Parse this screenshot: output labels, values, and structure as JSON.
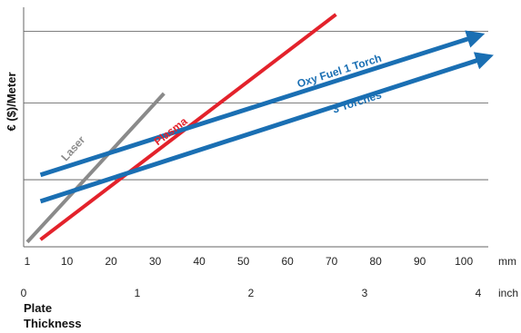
{
  "chart_data": {
    "type": "line",
    "title": "",
    "ylabel": "€ ($)/Meter",
    "xlabel": "Plate Thickness",
    "xlabel_line1": "Plate",
    "xlabel_line2": "Thickness",
    "x_unit_mm": "mm",
    "x_unit_inch": "inch",
    "x_ticks_mm": [
      "1",
      "10",
      "20",
      "30",
      "40",
      "50",
      "60",
      "70",
      "80",
      "90",
      "100"
    ],
    "x_ticks_inch": [
      "0",
      "1",
      "2",
      "3",
      "4"
    ],
    "xlim": [
      1,
      107
    ],
    "ylim": [
      0,
      100
    ],
    "grid": "horizontal",
    "series": [
      {
        "name": "Laser",
        "color": "#8a8a8a",
        "arrow": false,
        "points": [
          [
            1,
            2
          ],
          [
            32,
            64
          ]
        ]
      },
      {
        "name": "Plasma",
        "color": "#e3222b",
        "arrow": false,
        "points": [
          [
            4,
            3
          ],
          [
            71,
            97
          ]
        ]
      },
      {
        "name": "Oxy Fuel 1 Torch",
        "color": "#1a6fb3",
        "arrow": true,
        "points": [
          [
            4,
            30
          ],
          [
            103,
            88
          ]
        ]
      },
      {
        "name": "3 Torches",
        "color": "#1a6fb3",
        "arrow": true,
        "points": [
          [
            4,
            19
          ],
          [
            105,
            79
          ]
        ]
      }
    ]
  }
}
